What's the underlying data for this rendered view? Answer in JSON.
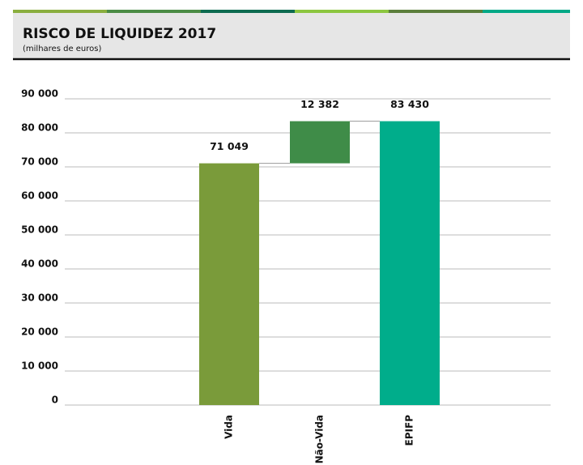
{
  "chart_data": {
    "type": "waterfall",
    "title": "RISCO DE LIQUIDEZ 2017",
    "subtitle": "(milhares de euros)",
    "categories": [
      "Vida",
      "Não-Vida",
      "EPIFP"
    ],
    "values": [
      71049,
      12382,
      83430
    ],
    "value_labels": [
      "71 049",
      "12 382",
      "83 430"
    ],
    "measure": [
      "relative",
      "relative",
      "total"
    ],
    "colors": [
      "#7a9b3a",
      "#3f8c48",
      "#00ad8b"
    ],
    "ylim": [
      0,
      90000
    ],
    "yticks": [
      0,
      {
        "value": 10000,
        "label": "10 000"
      },
      {
        "value": 20000,
        "label": "20 000"
      },
      {
        "value": 30000,
        "label": "30 000"
      },
      {
        "value": 40000,
        "label": "40 000"
      },
      {
        "value": 50000,
        "label": "50 000"
      },
      {
        "value": 60000,
        "label": "60 000"
      },
      {
        "value": 70000,
        "label": "70 000"
      },
      {
        "value": 80000,
        "label": "80 000"
      },
      {
        "value": 90000,
        "label": "90 000"
      }
    ],
    "grid": true
  }
}
